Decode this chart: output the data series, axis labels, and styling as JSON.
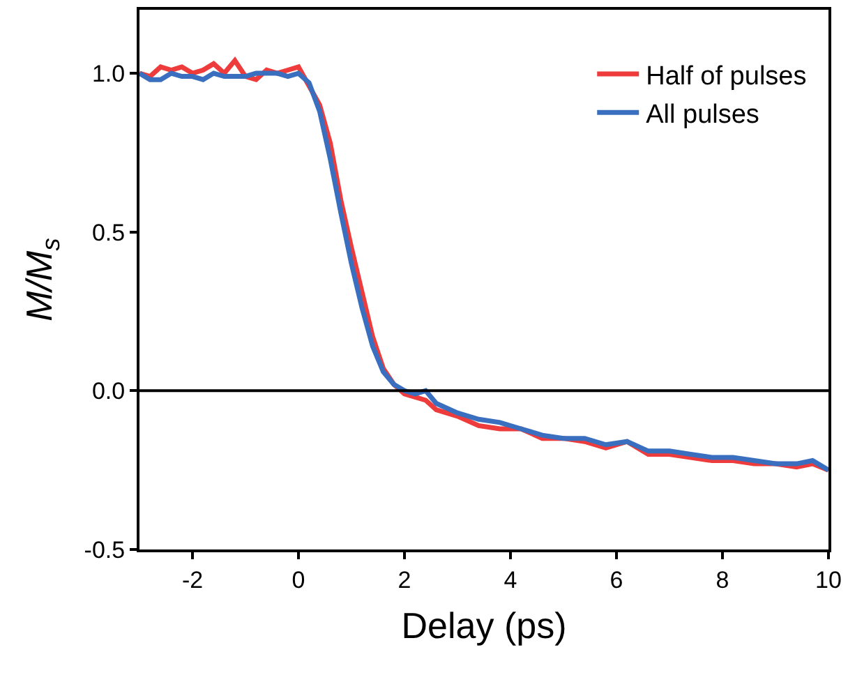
{
  "chart_data": {
    "type": "line",
    "xlabel": "Delay (ps)",
    "ylabel": "M/M$_{s}$",
    "xlim": [
      -3,
      10
    ],
    "xticks": [
      -2,
      0,
      2,
      4,
      6,
      8,
      10
    ],
    "ylim": [
      -0.5,
      1.2
    ],
    "yticks": [
      {
        "value": -0.5,
        "label": "-0.5"
      },
      {
        "value": 0,
        "label": "0.0"
      },
      {
        "value": 0.5,
        "label": "0.5"
      },
      {
        "value": 1,
        "label": "1.0"
      }
    ],
    "legend": "top right",
    "ref_lines": [
      {
        "axis": "y",
        "value": 0,
        "color": "#000000"
      }
    ],
    "series": [
      {
        "name": "Half of pulses",
        "color": "#ee3b3b",
        "x": [
          -3,
          -2.8,
          -2.6,
          -2.4,
          -2.2,
          -2,
          -1.8,
          -1.6,
          -1.4,
          -1.2,
          -1,
          -0.8,
          -0.6,
          -0.4,
          -0.2,
          0,
          0.2,
          0.4,
          0.6,
          0.8,
          1,
          1.2,
          1.4,
          1.6,
          1.8,
          2,
          2.2,
          2.4,
          2.6,
          3,
          3.4,
          3.8,
          4.2,
          4.6,
          5,
          5.4,
          5.8,
          6.2,
          6.6,
          7,
          7.4,
          7.8,
          8.2,
          8.6,
          9,
          9.4,
          9.7,
          10
        ],
        "values": [
          1.0,
          0.99,
          1.02,
          1.01,
          1.02,
          1.0,
          1.01,
          1.03,
          1.0,
          1.04,
          0.99,
          0.98,
          1.01,
          1.0,
          1.01,
          1.02,
          0.96,
          0.9,
          0.78,
          0.6,
          0.45,
          0.31,
          0.17,
          0.07,
          0.02,
          -0.01,
          -0.02,
          -0.03,
          -0.06,
          -0.08,
          -0.11,
          -0.12,
          -0.12,
          -0.15,
          -0.15,
          -0.16,
          -0.18,
          -0.16,
          -0.2,
          -0.2,
          -0.21,
          -0.22,
          -0.22,
          -0.23,
          -0.23,
          -0.24,
          -0.23,
          -0.25
        ]
      },
      {
        "name": "All pulses",
        "color": "#3a6fbf",
        "x": [
          -3,
          -2.8,
          -2.6,
          -2.4,
          -2.2,
          -2,
          -1.8,
          -1.6,
          -1.4,
          -1.2,
          -1,
          -0.8,
          -0.6,
          -0.4,
          -0.2,
          0,
          0.2,
          0.4,
          0.6,
          0.8,
          1,
          1.2,
          1.4,
          1.6,
          1.8,
          2,
          2.2,
          2.4,
          2.6,
          3,
          3.4,
          3.8,
          4.2,
          4.6,
          5,
          5.4,
          5.8,
          6.2,
          6.6,
          7,
          7.4,
          7.8,
          8.2,
          8.6,
          9,
          9.4,
          9.7,
          10
        ],
        "values": [
          1.0,
          0.98,
          0.98,
          1.0,
          0.99,
          0.99,
          0.98,
          1.0,
          0.99,
          0.99,
          0.99,
          1.0,
          1.0,
          1.0,
          0.99,
          1.0,
          0.97,
          0.88,
          0.73,
          0.56,
          0.4,
          0.26,
          0.14,
          0.06,
          0.02,
          0.0,
          -0.01,
          0.0,
          -0.04,
          -0.07,
          -0.09,
          -0.1,
          -0.12,
          -0.14,
          -0.15,
          -0.15,
          -0.17,
          -0.16,
          -0.19,
          -0.19,
          -0.2,
          -0.21,
          -0.21,
          -0.22,
          -0.23,
          -0.23,
          -0.22,
          -0.25
        ]
      }
    ]
  }
}
